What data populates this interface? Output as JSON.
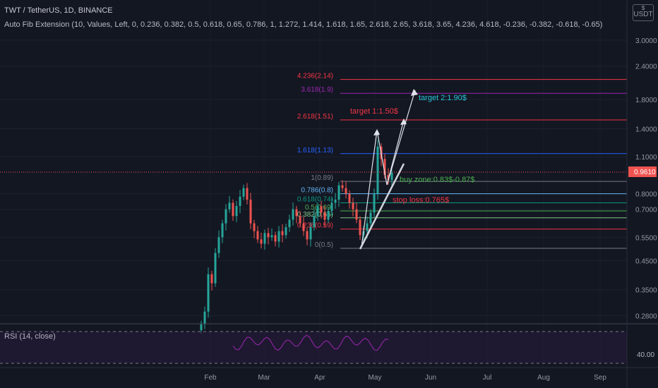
{
  "header": {
    "pair_line": "TWT / TetherUS, 1D, BINANCE",
    "indicator_line": "Auto Fib Extension (10, Values, Left, 0, 0.236, 0.382, 0.5, 0.618, 0.65, 0.786, 1, 1.272, 1.414, 1.618, 1.65, 2.618, 2.65, 3.618, 3.65, 4.236, 4.618, -0.236, -0.382, -0.618, -0.65)"
  },
  "currency_badge": {
    "symbol": "$",
    "label": "USDT"
  },
  "rsi": {
    "label": "RSI (14, close)",
    "tick": "40.00"
  },
  "colors": {
    "background": "#131722",
    "up": "#26a69a",
    "down": "#ef5350",
    "rsi": "#9c27b0"
  },
  "chart_data": {
    "type": "candlestick",
    "y_scale": "log",
    "ylim": [
      0.25,
      4.0
    ],
    "x_months": [
      "Feb",
      "Mar",
      "Apr",
      "May",
      "Jun",
      "Jul",
      "Aug",
      "Sep"
    ],
    "y_ticks": [
      "3.0000",
      "2.4000",
      "1.8000",
      "1.4000",
      "1.1000",
      "0.8000",
      "0.7000",
      "0.5500",
      "0.4500",
      "0.3500",
      "0.2800"
    ],
    "last_price": "0.9610",
    "fib_levels": [
      {
        "label": "4.236(2.14)",
        "price": 2.14,
        "color": "#f23645"
      },
      {
        "label": "3.618(1.9)",
        "price": 1.9,
        "color": "#9c27b0"
      },
      {
        "label": "2.618(1.51)",
        "price": 1.51,
        "color": "#f23645"
      },
      {
        "label": "1.618(1.13)",
        "price": 1.13,
        "color": "#2962ff"
      },
      {
        "label": "1(0.89)",
        "price": 0.89,
        "color": "#787b86"
      },
      {
        "label": "0.786(0.8)",
        "price": 0.8,
        "color": "#64b5f6"
      },
      {
        "label": "0.618(0.74)",
        "price": 0.74,
        "color": "#089981"
      },
      {
        "label": "0.5(0.69)",
        "price": 0.69,
        "color": "#4caf50"
      },
      {
        "label": "0.382(0.65)",
        "price": 0.65,
        "color": "#81c784"
      },
      {
        "label": "0.236(0.59)",
        "price": 0.59,
        "color": "#f23645"
      },
      {
        "label": "0(0.5)",
        "price": 0.5,
        "color": "#787b86"
      }
    ],
    "annotations": [
      {
        "text": "target 2:1.90$",
        "color": "#26c6da"
      },
      {
        "text": "target 1:1.50$",
        "color": "#f23645"
      },
      {
        "text": "buy zone:0.83$-0.87$",
        "color": "#4caf50"
      },
      {
        "text": "stop loss:0.765$",
        "color": "#f23645"
      }
    ]
  }
}
